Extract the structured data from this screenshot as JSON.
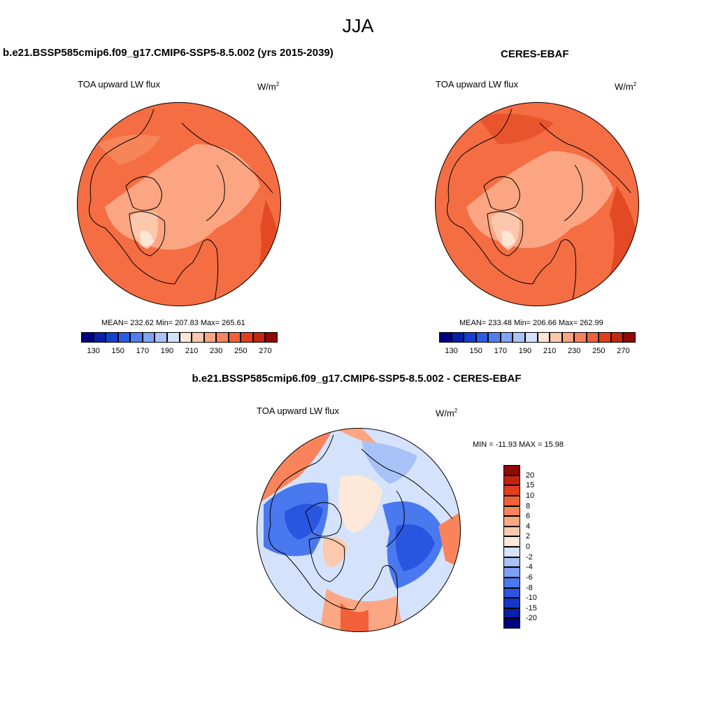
{
  "season": "JJA",
  "top_left": {
    "title": "b.e21.BSSP585cmip6.f09_g17.CMIP6-SSP5-8.5.002 (yrs 2015-2039)",
    "variable": "TOA upward LW flux",
    "units_base": "W/m",
    "units_exp": "2",
    "stats": "MEAN= 232.62  Min= 207.83  Max= 265.61"
  },
  "top_right": {
    "title": "CERES-EBAF",
    "variable": "TOA upward LW flux",
    "units_base": "W/m",
    "units_exp": "2",
    "stats": "MEAN= 233.48  Min= 206.66  Max= 262.99"
  },
  "bottom": {
    "title": "b.e21.BSSP585cmip6.f09_g17.CMIP6-SSP5-8.5.002 - CERES-EBAF",
    "variable": "TOA upward LW flux",
    "units_base": "W/m",
    "units_exp": "2",
    "minmax": "MIN = -11.93 MAX =  15.98"
  },
  "abs_colorbar": {
    "colors": [
      "#00007f",
      "#0a1fa8",
      "#1440d0",
      "#2a5ce8",
      "#4f7ef0",
      "#7fa3f5",
      "#aac4f8",
      "#d2e2fb",
      "#fde6d6",
      "#fcc7ab",
      "#fca582",
      "#f9825c",
      "#f2603a",
      "#e13e1c",
      "#c4260e",
      "#8e0a03"
    ],
    "labels": [
      "130",
      "150",
      "170",
      "190",
      "210",
      "230",
      "250",
      "270"
    ]
  },
  "diff_colorbar": {
    "colors": [
      "#000080",
      "#0a1fa8",
      "#1437c4",
      "#2a55e0",
      "#4a78ee",
      "#7da0f4",
      "#a8c2f8",
      "#d4e3fb",
      "#fde8d9",
      "#fcc9ad",
      "#fca784",
      "#f9845c",
      "#f2603a",
      "#e13e1c",
      "#bf2410",
      "#8e0a03"
    ],
    "labels": [
      "20",
      "15",
      "10",
      "8",
      "6",
      "4",
      "2",
      "0",
      "-2",
      "-4",
      "-6",
      "-8",
      "-10",
      "-15",
      "-20"
    ]
  }
}
